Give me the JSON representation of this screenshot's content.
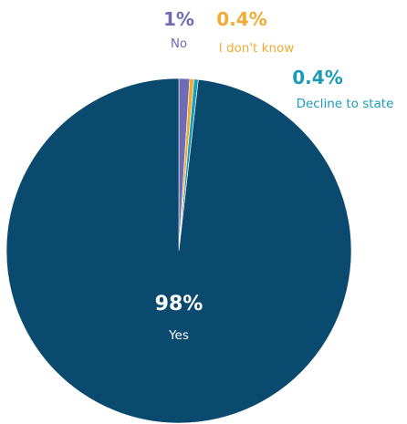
{
  "chart_data": {
    "type": "pie",
    "title": "",
    "slices": [
      {
        "label": "Yes",
        "value": 98,
        "display": "98%",
        "color": "#0b4a6f"
      },
      {
        "label": "No",
        "value": 1,
        "display": "1%",
        "color": "#6f6bb5"
      },
      {
        "label": "I don't know",
        "value": 0.4,
        "display": "0.4%",
        "color": "#f0ab33"
      },
      {
        "label": "Decline to state",
        "value": 0.4,
        "display": "0.4%",
        "color": "#1a9cb8"
      }
    ]
  }
}
